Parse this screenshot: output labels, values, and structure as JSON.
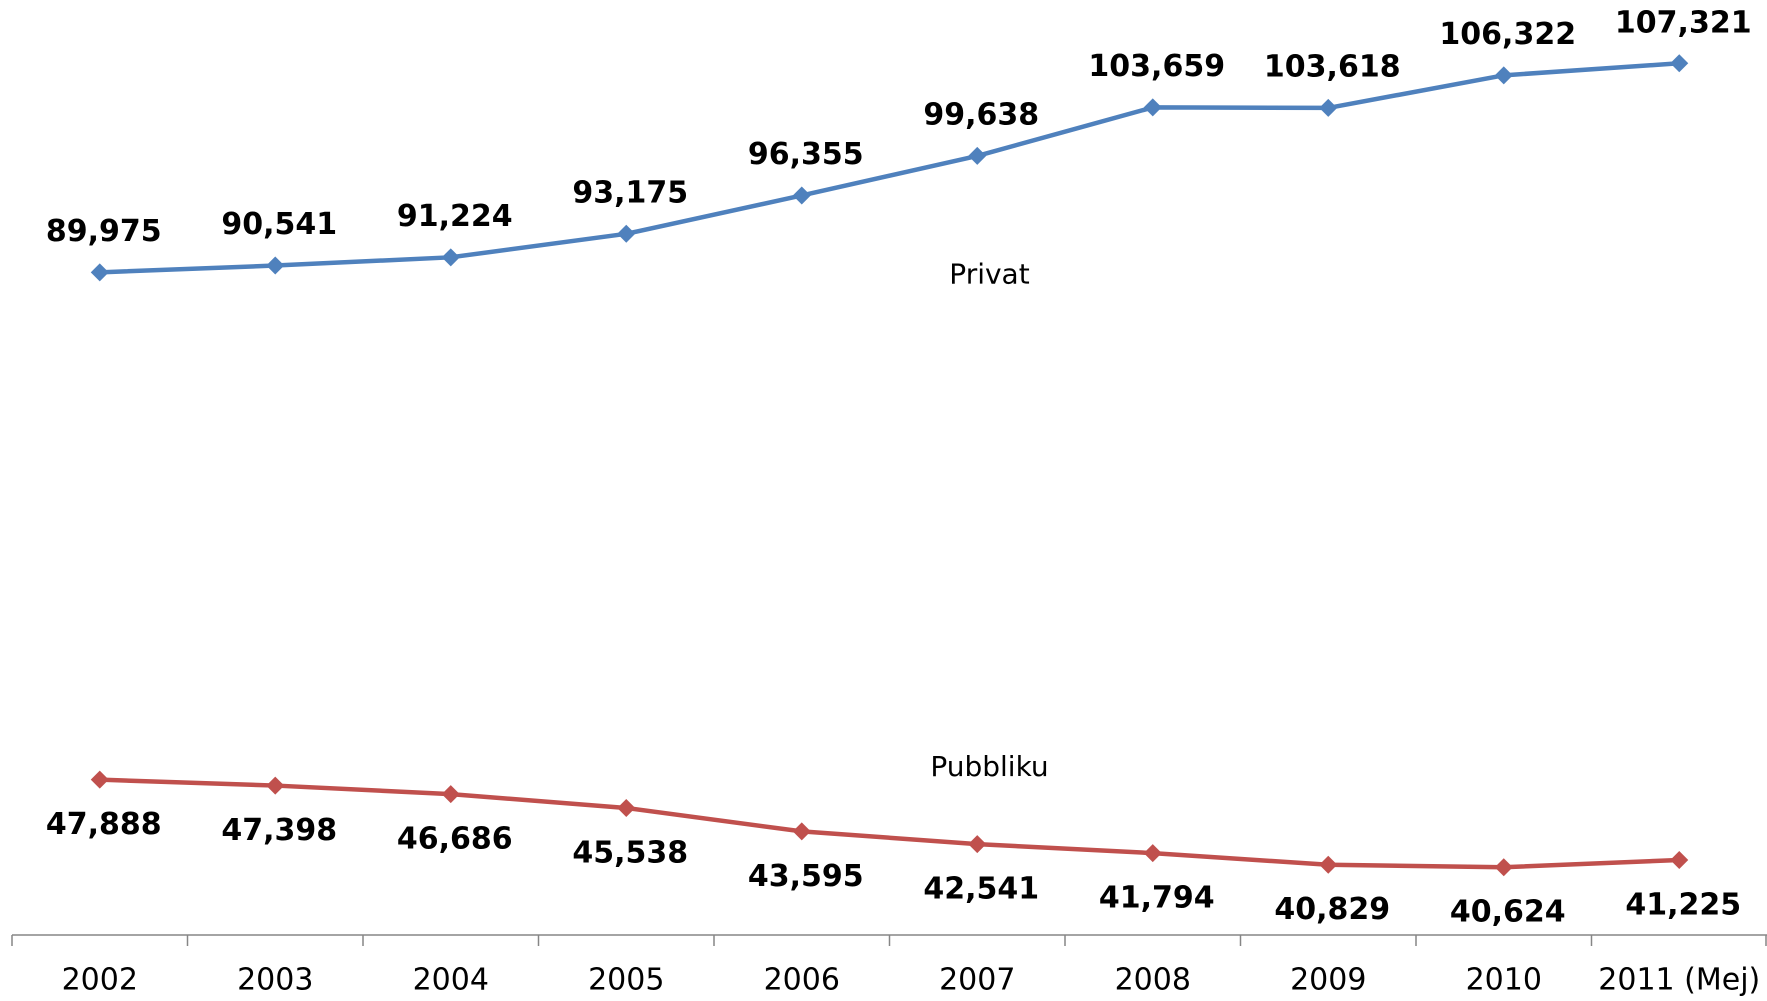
{
  "chart_data": {
    "type": "line",
    "categories": [
      "2002",
      "2003",
      "2004",
      "2005",
      "2006",
      "2007",
      "2008",
      "2009",
      "2010",
      "2011 (Mej)"
    ],
    "series": [
      {
        "name": "Privat",
        "color": "#4f81bd",
        "values": [
          89975,
          90541,
          91224,
          93175,
          96355,
          99638,
          103659,
          103618,
          106322,
          107321
        ],
        "value_labels": [
          "89,975",
          "90,541",
          "91,224",
          "93,175",
          "96,355",
          "99,638",
          "103,659",
          "103,618",
          "106,322",
          "107,321"
        ]
      },
      {
        "name": "Pubbliku",
        "color": "#c0504d",
        "values": [
          47888,
          47398,
          46686,
          45538,
          43595,
          42541,
          41794,
          40829,
          40624,
          41225
        ],
        "value_labels": [
          "47,888",
          "47,398",
          "46,686",
          "45,538",
          "43,595",
          "42,541",
          "41,794",
          "40,829",
          "40,624",
          "41,225"
        ]
      }
    ],
    "ylim": [
      35000,
      110000
    ]
  }
}
